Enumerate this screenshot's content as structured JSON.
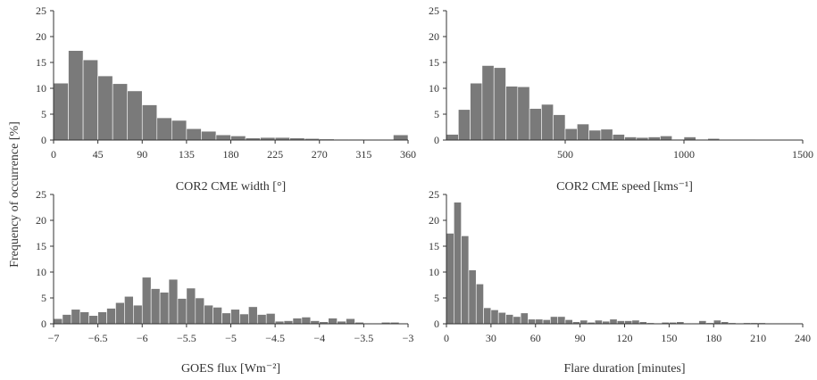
{
  "figure": {
    "ylabel": "Frequency of occurrence [%]",
    "bar_color": "#7a7a7a",
    "axis_color": "#333333",
    "bar_edge_color": "#ffffff"
  },
  "chart_data": [
    {
      "type": "bar",
      "xlabel": "COR2 CME width [°]",
      "xlim": [
        0,
        360
      ],
      "ylim": [
        0,
        25
      ],
      "xticks": [
        0,
        45,
        90,
        135,
        180,
        225,
        270,
        315,
        360
      ],
      "xtick_labels": [
        "0",
        "45",
        "90",
        "135",
        "180",
        "225",
        "270",
        "315",
        "360"
      ],
      "yticks": [
        0,
        5,
        10,
        15,
        20,
        25
      ],
      "ytick_labels": [
        "0",
        "5",
        "10",
        "15",
        "20",
        "25"
      ],
      "bin_edges": [
        0,
        15,
        30,
        45,
        60,
        75,
        90,
        105,
        120,
        135,
        150,
        165,
        180,
        195,
        210,
        225,
        240,
        255,
        270,
        285,
        300,
        315,
        330,
        345,
        360
      ],
      "values": [
        11.0,
        17.3,
        15.5,
        12.4,
        10.9,
        9.5,
        6.8,
        4.3,
        3.8,
        2.2,
        1.7,
        1.0,
        0.8,
        0.4,
        0.5,
        0.5,
        0.4,
        0.3,
        0.2,
        0.15,
        0.15,
        0.1,
        0.1,
        1.0
      ]
    },
    {
      "type": "bar",
      "xlabel": "COR2 CME speed [kms⁻¹]",
      "xlim": [
        0,
        1500
      ],
      "ylim": [
        0,
        25
      ],
      "xticks": [
        500,
        1000,
        1500
      ],
      "xtick_labels": [
        "500",
        "1000",
        "1500"
      ],
      "yticks": [
        0,
        5,
        10,
        15,
        20,
        25
      ],
      "ytick_labels": [
        "0",
        "5",
        "10",
        "15",
        "20",
        "25"
      ],
      "bin_edges": [
        0,
        50,
        100,
        150,
        200,
        250,
        300,
        350,
        400,
        450,
        500,
        550,
        600,
        650,
        700,
        750,
        800,
        850,
        900,
        950,
        1000,
        1050,
        1100,
        1150,
        1200,
        1250,
        1300,
        1350,
        1400,
        1450,
        1500
      ],
      "values": [
        1.1,
        5.9,
        11.0,
        14.4,
        14.0,
        10.4,
        10.3,
        6.1,
        6.9,
        4.9,
        2.2,
        3.1,
        1.9,
        2.1,
        1.1,
        0.6,
        0.5,
        0.6,
        0.8,
        0.15,
        0.6,
        0.15,
        0.3,
        0.1,
        0.1,
        0.1,
        0.05,
        0.05,
        0.05,
        0.05
      ]
    },
    {
      "type": "bar",
      "xlabel": "GOES flux [Wm⁻²]",
      "xlim": [
        -7,
        -3
      ],
      "ylim": [
        0,
        25
      ],
      "xticks": [
        -7,
        -6.5,
        -6,
        -5.5,
        -5,
        -4.5,
        -4,
        -3.5,
        -3
      ],
      "xtick_labels": [
        "−7",
        "−6.5",
        "−6",
        "−5.5",
        "−5",
        "−4.5",
        "−4",
        "−3.5",
        "−3"
      ],
      "yticks": [
        0,
        5,
        10,
        15,
        20,
        25
      ],
      "ytick_labels": [
        "0",
        "5",
        "10",
        "15",
        "20",
        "25"
      ],
      "bin_edges": [
        -7.0,
        -6.9,
        -6.8,
        -6.7,
        -6.6,
        -6.5,
        -6.4,
        -6.3,
        -6.2,
        -6.1,
        -6.0,
        -5.9,
        -5.8,
        -5.7,
        -5.6,
        -5.5,
        -5.4,
        -5.3,
        -5.2,
        -5.1,
        -5.0,
        -4.9,
        -4.8,
        -4.7,
        -4.6,
        -4.5,
        -4.4,
        -4.3,
        -4.2,
        -4.1,
        -4.0,
        -3.9,
        -3.8,
        -3.7,
        -3.6,
        -3.5,
        -3.4,
        -3.3,
        -3.2,
        -3.1,
        -3.0
      ],
      "values": [
        1.0,
        1.8,
        2.8,
        2.3,
        1.6,
        2.3,
        3.0,
        4.1,
        5.3,
        3.6,
        9.0,
        6.8,
        6.1,
        8.6,
        4.9,
        6.9,
        5.0,
        3.6,
        3.2,
        2.1,
        2.8,
        1.9,
        3.3,
        1.8,
        2.0,
        0.5,
        0.6,
        1.1,
        1.3,
        0.6,
        0.4,
        1.1,
        0.5,
        1.0,
        0.3,
        0.1,
        0.1,
        0.3,
        0.3,
        0.1
      ]
    },
    {
      "type": "bar",
      "xlabel": "Flare duration [minutes]",
      "xlim": [
        0,
        240
      ],
      "ylim": [
        0,
        25
      ],
      "xticks": [
        0,
        30,
        60,
        90,
        120,
        150,
        180,
        210,
        240
      ],
      "xtick_labels": [
        "0",
        "30",
        "60",
        "90",
        "120",
        "150",
        "180",
        "210",
        "240"
      ],
      "yticks": [
        0,
        5,
        10,
        15,
        20,
        25
      ],
      "ytick_labels": [
        "0",
        "5",
        "10",
        "15",
        "20",
        "25"
      ],
      "bin_edges": [
        0,
        5,
        10,
        15,
        20,
        25,
        30,
        35,
        40,
        45,
        50,
        55,
        60,
        65,
        70,
        75,
        80,
        85,
        90,
        95,
        100,
        105,
        110,
        115,
        120,
        125,
        130,
        135,
        140,
        145,
        150,
        155,
        160,
        165,
        170,
        175,
        180,
        185,
        190,
        195,
        200,
        205,
        210,
        215,
        220,
        225,
        230,
        235,
        240
      ],
      "values": [
        17.5,
        23.5,
        17.0,
        10.4,
        7.7,
        3.1,
        2.7,
        2.2,
        1.8,
        1.4,
        2.1,
        0.9,
        0.9,
        0.8,
        1.4,
        1.4,
        0.8,
        0.4,
        0.7,
        0.3,
        0.7,
        0.5,
        0.9,
        0.6,
        0.6,
        0.7,
        0.4,
        0.2,
        0.1,
        0.3,
        0.3,
        0.4,
        0.1,
        0.1,
        0.6,
        0.2,
        0.7,
        0.4,
        0.2,
        0.1,
        0.2,
        0.2,
        0.2,
        0.1,
        0.1,
        0.1,
        0.1,
        0.1
      ]
    }
  ]
}
